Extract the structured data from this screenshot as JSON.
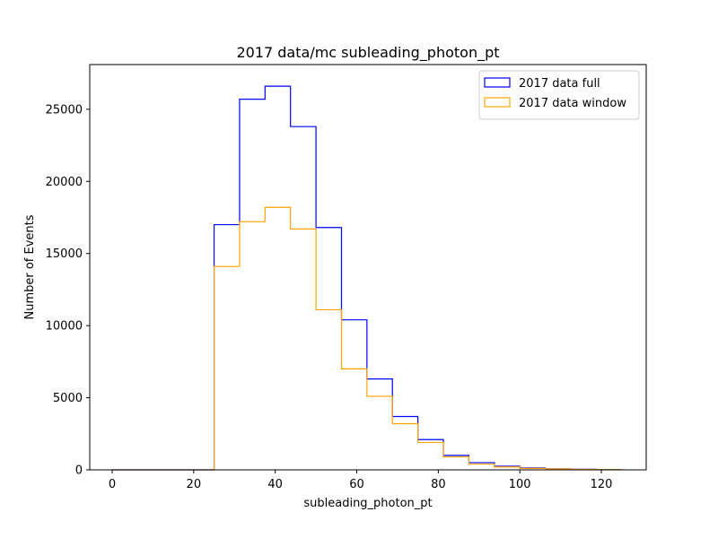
{
  "chart_data": {
    "type": "histogram-step",
    "title": "2017 data/mc subleading_photon_pt",
    "xlabel": "subleading_photon_pt",
    "ylabel": "Number of Events",
    "xlim": [
      -5.5,
      131.0
    ],
    "ylim": [
      0,
      28100
    ],
    "xticks": [
      0,
      20,
      40,
      60,
      80,
      100,
      120
    ],
    "yticks": [
      0,
      5000,
      10000,
      15000,
      20000,
      25000
    ],
    "bin_edges": [
      0,
      6.25,
      12.5,
      18.75,
      25,
      31.25,
      37.5,
      43.75,
      50,
      56.25,
      62.5,
      68.75,
      75,
      81.25,
      87.5,
      93.75,
      100,
      106.25,
      112.5,
      118.75,
      125
    ],
    "legend_position": "upper-right",
    "grid": false,
    "series": [
      {
        "name": "2017 data full",
        "color": "#0000ff",
        "values": [
          0,
          0,
          0,
          0,
          17000,
          25700,
          26600,
          23800,
          16800,
          10400,
          6300,
          3700,
          2100,
          1000,
          500,
          250,
          130,
          70,
          40,
          20
        ]
      },
      {
        "name": "2017 data window",
        "color": "#ffa500",
        "values": [
          0,
          0,
          0,
          0,
          14100,
          17200,
          18200,
          16700,
          11100,
          7000,
          5100,
          3200,
          1900,
          900,
          400,
          200,
          100,
          60,
          30,
          15
        ]
      }
    ]
  }
}
